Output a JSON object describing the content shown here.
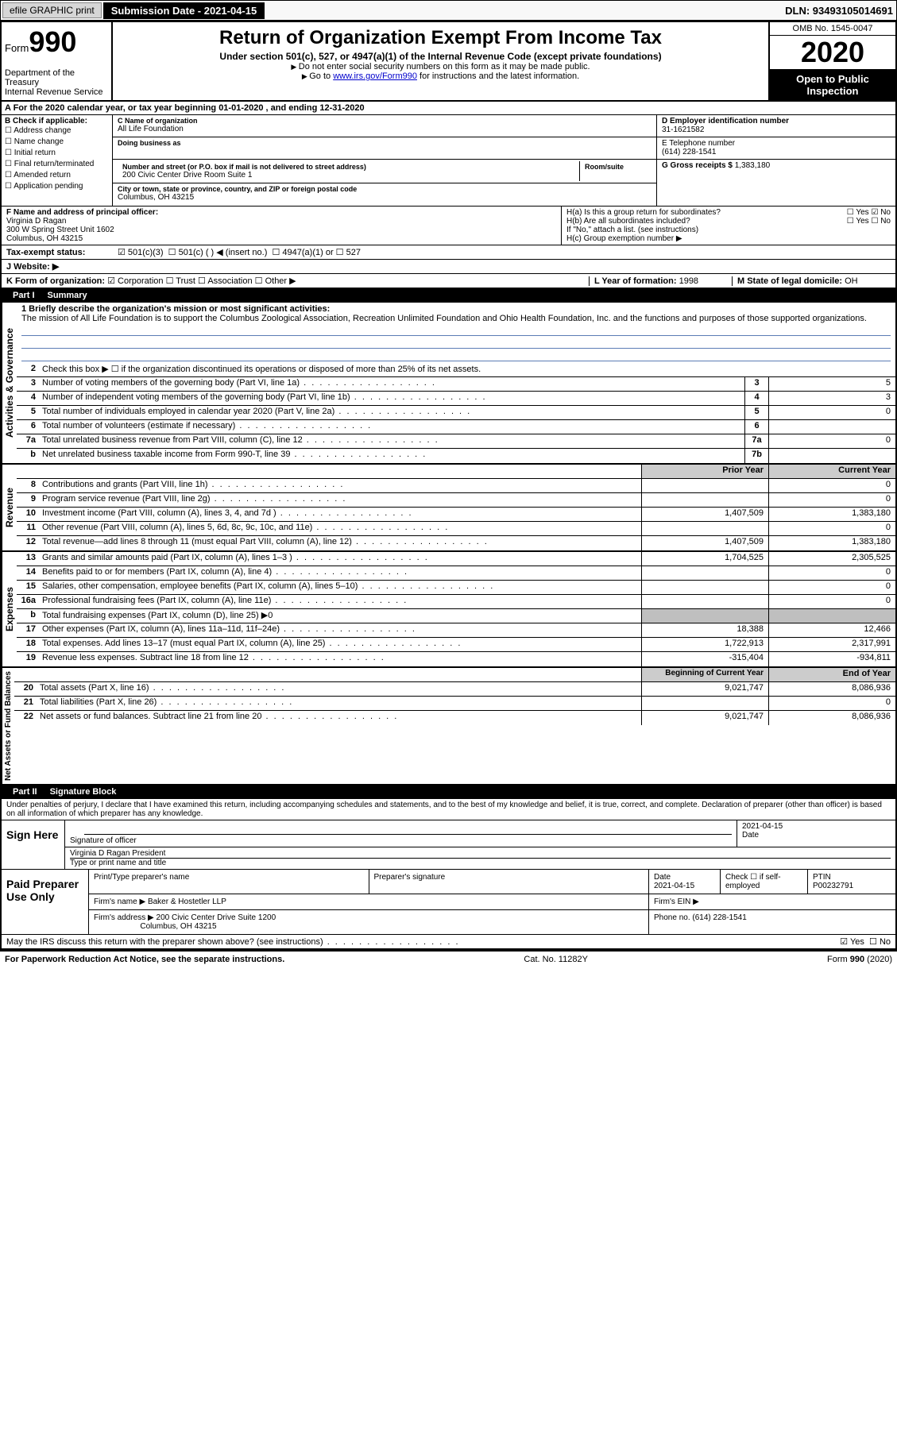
{
  "topbar": {
    "efile": "efile GRAPHIC print",
    "submission_label": "Submission Date - 2021-04-15",
    "dln": "DLN: 93493105014691"
  },
  "header": {
    "form_label": "Form",
    "form_number": "990",
    "dept": "Department of the Treasury\nInternal Revenue Service",
    "title": "Return of Organization Exempt From Income Tax",
    "subtitle": "Under section 501(c), 527, or 4947(a)(1) of the Internal Revenue Code (except private foundations)",
    "note1": "Do not enter social security numbers on this form as it may be made public.",
    "note2_pre": "Go to ",
    "note2_link": "www.irs.gov/Form990",
    "note2_post": " for instructions and the latest information.",
    "omb": "OMB No. 1545-0047",
    "year": "2020",
    "inspect": "Open to Public Inspection"
  },
  "rowA": "A For the 2020 calendar year, or tax year beginning 01-01-2020   , and ending 12-31-2020",
  "B": {
    "label": "B Check if applicable:",
    "opts": [
      "Address change",
      "Name change",
      "Initial return",
      "Final return/terminated",
      "Amended return",
      "Application pending"
    ]
  },
  "C": {
    "name_lab": "C Name of organization",
    "name": "All Life Foundation",
    "dba_lab": "Doing business as",
    "addr_lab": "Number and street (or P.O. box if mail is not delivered to street address)",
    "addr": "200 Civic Center Drive Room Suite 1",
    "room_lab": "Room/suite",
    "city_lab": "City or town, state or province, country, and ZIP or foreign postal code",
    "city": "Columbus, OH  43215"
  },
  "D": {
    "lab": "D Employer identification number",
    "val": "31-1621582"
  },
  "E": {
    "lab": "E Telephone number",
    "val": "(614) 228-1541"
  },
  "G": {
    "lab": "G Gross receipts $",
    "val": "1,383,180"
  },
  "F": {
    "lab": "F  Name and address of principal officer:",
    "name": "Virginia D Ragan",
    "addr1": "300 W Spring Street Unit 1602",
    "addr2": "Columbus, OH  43215"
  },
  "H": {
    "a": "H(a)  Is this a group return for subordinates?",
    "a_yes": "Yes",
    "a_no": "No",
    "b": "H(b)  Are all subordinates included?",
    "b_yes": "Yes",
    "b_no": "No",
    "b_note": "If \"No,\" attach a list. (see instructions)",
    "c": "H(c)  Group exemption number ▶"
  },
  "I": {
    "lab": "Tax-exempt status:",
    "o1": "501(c)(3)",
    "o2": "501(c) (  ) ◀ (insert no.)",
    "o3": "4947(a)(1) or",
    "o4": "527"
  },
  "J": {
    "lab": "J   Website: ▶"
  },
  "K": {
    "lab": "K Form of organization:",
    "o1": "Corporation",
    "o2": "Trust",
    "o3": "Association",
    "o4": "Other ▶"
  },
  "L": {
    "lab": "L Year of formation:",
    "val": "1998"
  },
  "M": {
    "lab": "M State of legal domicile:",
    "val": "OH"
  },
  "partI": {
    "tab": "Part I",
    "title": "Summary"
  },
  "mission": {
    "lab": "1  Briefly describe the organization's mission or most significant activities:",
    "text": "The mission of All Life Foundation is to support the Columbus Zoological Association, Recreation Unlimited Foundation and Ohio Health Foundation, Inc. and the functions and purposes of those supported organizations."
  },
  "lines_gov": [
    {
      "n": "2",
      "d": "Check this box ▶ ☐  if the organization discontinued its operations or disposed of more than 25% of its net assets."
    },
    {
      "n": "3",
      "d": "Number of voting members of the governing body (Part VI, line 1a)",
      "box": "3",
      "v": "5"
    },
    {
      "n": "4",
      "d": "Number of independent voting members of the governing body (Part VI, line 1b)",
      "box": "4",
      "v": "3"
    },
    {
      "n": "5",
      "d": "Total number of individuals employed in calendar year 2020 (Part V, line 2a)",
      "box": "5",
      "v": "0"
    },
    {
      "n": "6",
      "d": "Total number of volunteers (estimate if necessary)",
      "box": "6",
      "v": ""
    },
    {
      "n": "7a",
      "d": "Total unrelated business revenue from Part VIII, column (C), line 12",
      "box": "7a",
      "v": "0"
    },
    {
      "n": "b",
      "d": "Net unrelated business taxable income from Form 990-T, line 39",
      "box": "7b",
      "v": ""
    }
  ],
  "colheads": {
    "prior": "Prior Year",
    "current": "Current Year"
  },
  "lines_rev": [
    {
      "n": "8",
      "d": "Contributions and grants (Part VIII, line 1h)",
      "p": "",
      "c": "0"
    },
    {
      "n": "9",
      "d": "Program service revenue (Part VIII, line 2g)",
      "p": "",
      "c": "0"
    },
    {
      "n": "10",
      "d": "Investment income (Part VIII, column (A), lines 3, 4, and 7d )",
      "p": "1,407,509",
      "c": "1,383,180"
    },
    {
      "n": "11",
      "d": "Other revenue (Part VIII, column (A), lines 5, 6d, 8c, 9c, 10c, and 11e)",
      "p": "",
      "c": "0"
    },
    {
      "n": "12",
      "d": "Total revenue—add lines 8 through 11 (must equal Part VIII, column (A), line 12)",
      "p": "1,407,509",
      "c": "1,383,180"
    }
  ],
  "lines_exp": [
    {
      "n": "13",
      "d": "Grants and similar amounts paid (Part IX, column (A), lines 1–3 )",
      "p": "1,704,525",
      "c": "2,305,525"
    },
    {
      "n": "14",
      "d": "Benefits paid to or for members (Part IX, column (A), line 4)",
      "p": "",
      "c": "0"
    },
    {
      "n": "15",
      "d": "Salaries, other compensation, employee benefits (Part IX, column (A), lines 5–10)",
      "p": "",
      "c": "0"
    },
    {
      "n": "16a",
      "d": "Professional fundraising fees (Part IX, column (A), line 11e)",
      "p": "",
      "c": "0"
    },
    {
      "n": "b",
      "d": "Total fundraising expenses (Part IX, column (D), line 25) ▶0",
      "grey": true
    },
    {
      "n": "17",
      "d": "Other expenses (Part IX, column (A), lines 11a–11d, 11f–24e)",
      "p": "18,388",
      "c": "12,466"
    },
    {
      "n": "18",
      "d": "Total expenses. Add lines 13–17 (must equal Part IX, column (A), line 25)",
      "p": "1,722,913",
      "c": "2,317,991"
    },
    {
      "n": "19",
      "d": "Revenue less expenses. Subtract line 18 from line 12",
      "p": "-315,404",
      "c": "-934,811"
    }
  ],
  "colheads2": {
    "begin": "Beginning of Current Year",
    "end": "End of Year"
  },
  "lines_net": [
    {
      "n": "20",
      "d": "Total assets (Part X, line 16)",
      "p": "9,021,747",
      "c": "8,086,936"
    },
    {
      "n": "21",
      "d": "Total liabilities (Part X, line 26)",
      "p": "",
      "c": "0"
    },
    {
      "n": "22",
      "d": "Net assets or fund balances. Subtract line 21 from line 20",
      "p": "9,021,747",
      "c": "8,086,936"
    }
  ],
  "partII": {
    "tab": "Part II",
    "title": "Signature Block"
  },
  "penalties": "Under penalties of perjury, I declare that I have examined this return, including accompanying schedules and statements, and to the best of my knowledge and belief, it is true, correct, and complete. Declaration of preparer (other than officer) is based on all information of which preparer has any knowledge.",
  "sign": {
    "here": "Sign Here",
    "sig_lab": "Signature of officer",
    "date": "2021-04-15",
    "date_lab": "Date",
    "name": "Virginia D Ragan  President",
    "name_lab": "Type or print name and title"
  },
  "paid": {
    "here": "Paid Preparer Use Only",
    "h1": "Print/Type preparer's name",
    "h2": "Preparer's signature",
    "h3": "Date",
    "h3v": "2021-04-15",
    "h4": "Check ☐ if self-employed",
    "h5": "PTIN",
    "h5v": "P00232791",
    "firm_lab": "Firm's name   ▶",
    "firm": "Baker & Hostetler LLP",
    "ein_lab": "Firm's EIN ▶",
    "addr_lab": "Firm's address ▶",
    "addr": "200 Civic Center Drive Suite 1200",
    "addr2": "Columbus, OH  43215",
    "phone_lab": "Phone no.",
    "phone": "(614) 228-1541"
  },
  "discuss": "May the IRS discuss this return with the preparer shown above? (see instructions)",
  "discuss_yes": "Yes",
  "discuss_no": "No",
  "footer": {
    "l": "For Paperwork Reduction Act Notice, see the separate instructions.",
    "m": "Cat. No. 11282Y",
    "r": "Form 990 (2020)"
  },
  "vlabels": {
    "gov": "Activities & Governance",
    "rev": "Revenue",
    "exp": "Expenses",
    "net": "Net Assets or Fund Balances"
  }
}
